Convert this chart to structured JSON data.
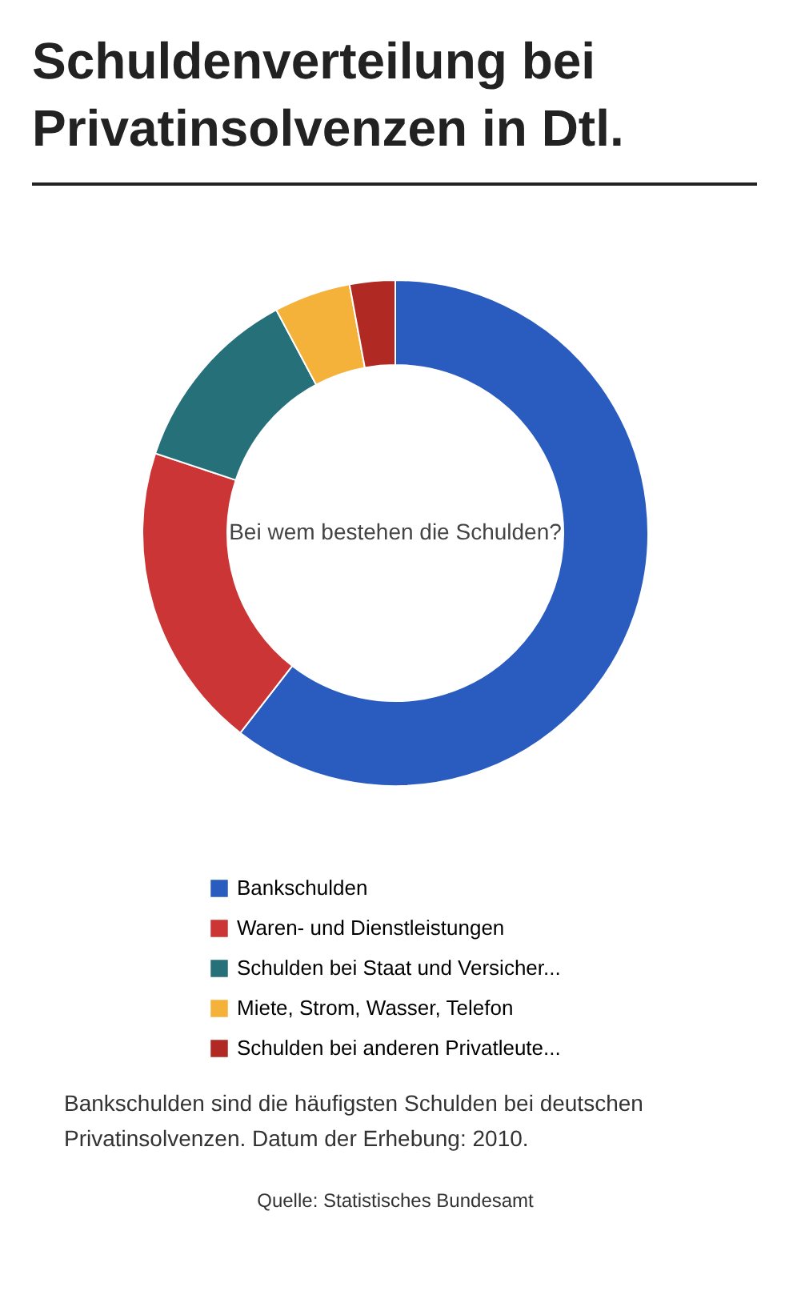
{
  "chart_data": {
    "type": "donut",
    "title": "Schuldenverteilung bei\nPrivatinsolvenzen in Dtl.",
    "categories": [
      "Bankschulden",
      "Waren- und Dienstleistungen",
      "Schulden bei Staat und Versicher...",
      "Miete, Strom, Wasser, Telefon",
      "Schulden bei anderen Privatleute..."
    ],
    "values": [
      60.5,
      19.6,
      12.1,
      4.9,
      2.9
    ],
    "colors": [
      "#2a5cbf",
      "#cc3535",
      "#26707a",
      "#f4b23a",
      "#b02a23"
    ],
    "legend": "bottom",
    "annotations": [
      "Bei wem bestehen die Schulden?",
      "Bankschulden sind die häufigsten Schulden bei deutschen\nPrivatinsolvenzen. Datum der Erhebung: 2010.",
      "Quelle: Statistisches Bundesamt"
    ]
  }
}
